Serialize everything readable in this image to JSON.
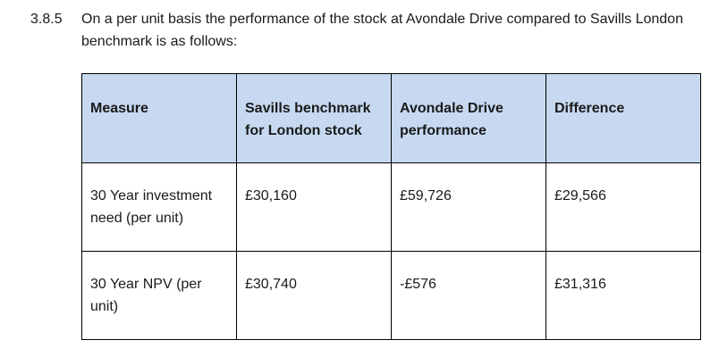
{
  "paragraph": {
    "number": "3.8.5",
    "text": "On a per unit basis the performance of the stock at Avondale Drive compared to Savills London benchmark is as follows:"
  },
  "table": {
    "headers": [
      "Measure",
      "Savills benchmark for London stock",
      "Avondale Drive performance",
      "Difference"
    ],
    "rows": [
      [
        "30 Year investment need (per unit)",
        "£30,160",
        "£59,726",
        "£29,566"
      ],
      [
        "30 Year NPV (per unit)",
        "£30,740",
        "-£576",
        "£31,316"
      ]
    ]
  },
  "colors": {
    "header_fill": "#c6d9f1",
    "border": "#000000"
  }
}
